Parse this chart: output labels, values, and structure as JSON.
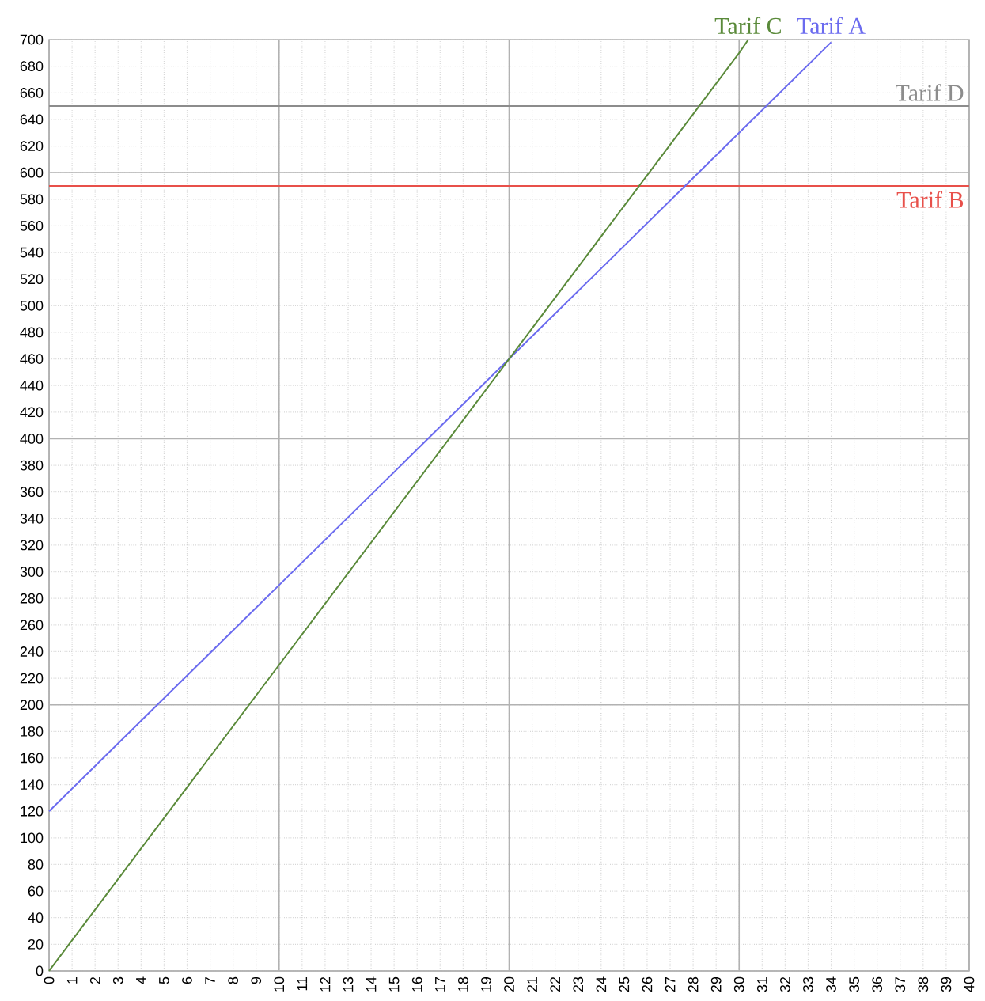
{
  "chart_data": {
    "type": "line",
    "series": [
      {
        "name": "Tarif A",
        "color": "#6b6bef",
        "x": [
          0,
          10,
          20,
          30,
          34
        ],
        "values": [
          120,
          290,
          460,
          630,
          698
        ]
      },
      {
        "name": "Tarif C",
        "color": "#5a8a3a",
        "x": [
          0,
          10,
          20,
          30,
          30.4
        ],
        "values": [
          0,
          230,
          460,
          690,
          700
        ]
      }
    ],
    "ref_lines": [
      {
        "axis": "y",
        "value": 650,
        "label": "Tarif D",
        "color": "#8c8c8c"
      },
      {
        "axis": "y",
        "value": 590,
        "label": "Tarif B",
        "color": "#e8504a"
      }
    ],
    "xlim": [
      0,
      40
    ],
    "ylim": [
      0,
      700
    ],
    "xticks": [
      0,
      1,
      2,
      3,
      4,
      5,
      6,
      7,
      8,
      9,
      10,
      11,
      12,
      13,
      14,
      15,
      16,
      17,
      18,
      19,
      20,
      21,
      22,
      23,
      24,
      25,
      26,
      27,
      28,
      29,
      30,
      31,
      32,
      33,
      34,
      35,
      36,
      37,
      38,
      39,
      40
    ],
    "yticks": [
      0,
      20,
      40,
      60,
      80,
      100,
      120,
      140,
      160,
      180,
      200,
      220,
      240,
      260,
      280,
      300,
      320,
      340,
      360,
      380,
      400,
      420,
      440,
      460,
      480,
      500,
      520,
      540,
      560,
      580,
      600,
      620,
      640,
      660,
      680,
      700
    ],
    "grid": true,
    "marker": "none",
    "line_style": "solid"
  }
}
